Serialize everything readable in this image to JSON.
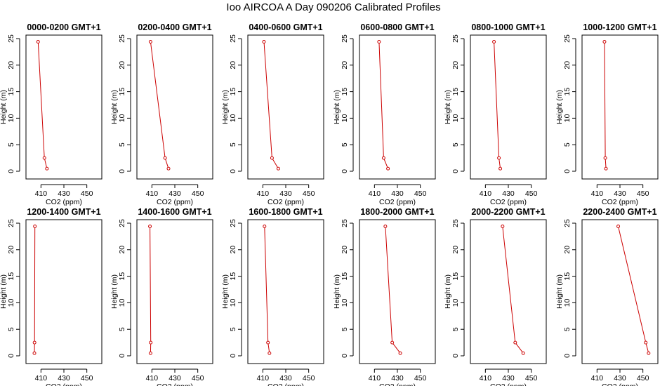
{
  "title": "Ioo AIRCOA A  Day 090206  Calibrated Profiles",
  "chart_data": {
    "type": "line",
    "series_color": "#cc0000",
    "xlabel": "CO2 (ppm)",
    "ylabel": "Height (m)",
    "xlim": [
      400,
      460
    ],
    "ylim": [
      0,
      25
    ],
    "xticks": [
      410,
      430,
      450
    ],
    "yticks": [
      0,
      5,
      10,
      15,
      20,
      25
    ],
    "heights": [
      24.4,
      2.5,
      0.5
    ],
    "panels": [
      {
        "title": "0000-0200 GMT+1",
        "co2": [
          407.5,
          413,
          415.2
        ]
      },
      {
        "title": "0200-0400 GMT+1",
        "co2": [
          408.8,
          421.5,
          424.5
        ]
      },
      {
        "title": "0400-0600 GMT+1",
        "co2": [
          411,
          418,
          423.5
        ]
      },
      {
        "title": "0600-0800 GMT+1",
        "co2": [
          414,
          418,
          421.8
        ]
      },
      {
        "title": "0800-1000 GMT+1",
        "co2": [
          417.5,
          421.8,
          423
        ]
      },
      {
        "title": "1000-1200 GMT+1",
        "co2": [
          416.5,
          417.2,
          417.8
        ]
      },
      {
        "title": "1200-1400 GMT+1",
        "co2": [
          404.7,
          404.4,
          404.3
        ]
      },
      {
        "title": "1400-1600 GMT+1",
        "co2": [
          408.3,
          409,
          408.8
        ]
      },
      {
        "title": "1600-1800 GMT+1",
        "co2": [
          411.5,
          414.5,
          415.8
        ]
      },
      {
        "title": "1800-2000 GMT+1",
        "co2": [
          419.5,
          425.5,
          432.5
        ]
      },
      {
        "title": "2000-2200 GMT+1",
        "co2": [
          425,
          436,
          443
        ]
      },
      {
        "title": "2200-2400 GMT+1",
        "co2": [
          428.5,
          452.5,
          455
        ]
      }
    ]
  }
}
